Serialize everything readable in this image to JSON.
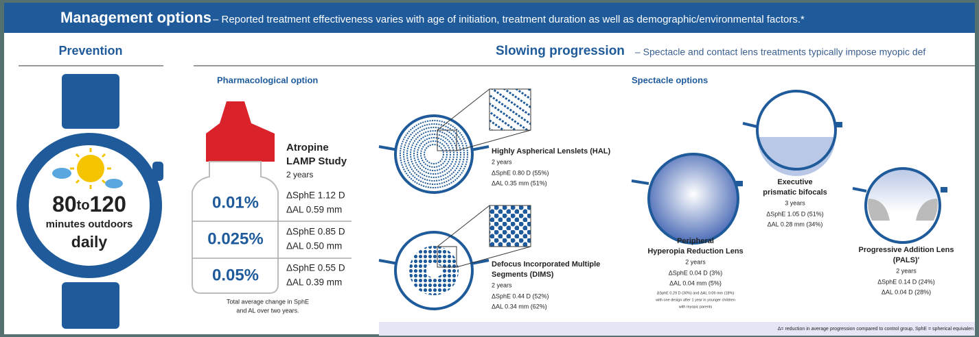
{
  "header": {
    "title": "Management options",
    "subtitle": "– Reported treatment effectiveness varies with age of initiation, treatment duration as well as demographic/environmental factors.*"
  },
  "prevention": {
    "heading": "Prevention",
    "from": "80",
    "to": "to",
    "upto": "120",
    "unit": "minutes outdoors",
    "frequency": "daily"
  },
  "slowing": {
    "heading": "Slowing progression",
    "subtitle": "– Spectacle and contact lens treatments typically impose myopic def"
  },
  "pharmacological": {
    "heading": "Pharmacological option",
    "study": [
      "Atropine",
      "LAMP Study"
    ],
    "duration": "2 years",
    "rows": [
      {
        "dose": "0.01%",
        "sphe": "ΔSphE 1.12 D",
        "al": "ΔAL 0.59 mm"
      },
      {
        "dose": "0.025%",
        "sphe": "ΔSphE 0.85 D",
        "al": "ΔAL 0.50 mm"
      },
      {
        "dose": "0.05%",
        "sphe": "ΔSphE 0.55 D",
        "al": "ΔAL 0.39 mm"
      }
    ],
    "note": [
      "Total average change in SphE",
      "and AL over two years."
    ]
  },
  "spectacle": {
    "heading": "Spectacle options",
    "lenses": [
      {
        "title": [
          "Highly Aspherical Lenslets (HAL)"
        ],
        "duration": "2 years",
        "sphe": "ΔSphE 0.80 D (55%)",
        "al": "ΔAL 0.35 mm (51%)"
      },
      {
        "title": [
          "Defocus Incorporated Multiple",
          "Segments (DIMS)"
        ],
        "duration": "2 years",
        "sphe": "ΔSphE 0.44 D (52%)",
        "al": "ΔAL 0.34 mm (62%)"
      },
      {
        "title": [
          "Peripheral",
          "Hyperopia Reduction Lens"
        ],
        "duration": "2 years",
        "sphe": "ΔSphE 0.04 D (3%)",
        "al": "ΔAL 0.04 mm (5%)",
        "note": [
          "ΔSphE 0.29 D (30%) and ΔAL 0.09 mm (18%)",
          "with one design after 1 year in younger children",
          "with myopic parents"
        ]
      },
      {
        "title": [
          "Executive",
          "prismatic bifocals"
        ],
        "duration": "3 years",
        "sphe": "ΔSphE 1.05 D (51%)",
        "al": "ΔAL 0.28 mm (34%)"
      },
      {
        "title": [
          "Progressive Addition Lens",
          "(PALS)'"
        ],
        "duration": "2 years",
        "sphe": "ΔSphE 0.14 D (24%)",
        "al": "ΔAL 0.04 D (28%)"
      }
    ]
  },
  "footer": "Δ= reduction in average progression compared to control group, SphE = spherical equivalen"
}
